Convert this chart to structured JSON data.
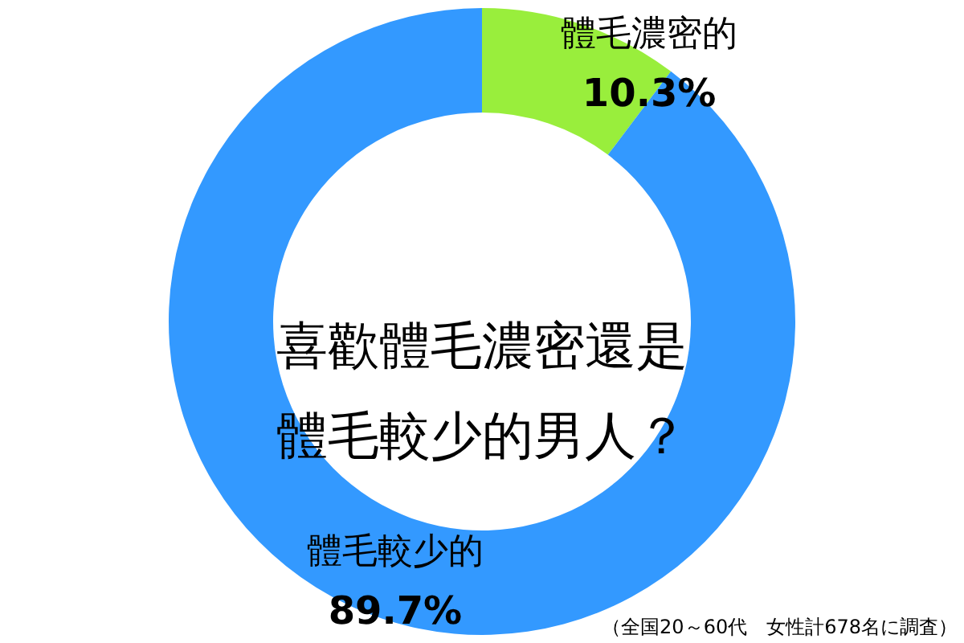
{
  "chart_data": {
    "type": "donut",
    "title": "喜歡體毛濃密還是體毛較少的男人？",
    "categories": [
      "體毛濃密的",
      "體毛較少的"
    ],
    "values": [
      10.3,
      89.7
    ],
    "colors": [
      "#99ee3c",
      "#3399ff"
    ],
    "value_labels": [
      "10.3%",
      "89.7%"
    ],
    "annotations": [
      "（全国20～60代　女性計678名に調査）"
    ]
  }
}
